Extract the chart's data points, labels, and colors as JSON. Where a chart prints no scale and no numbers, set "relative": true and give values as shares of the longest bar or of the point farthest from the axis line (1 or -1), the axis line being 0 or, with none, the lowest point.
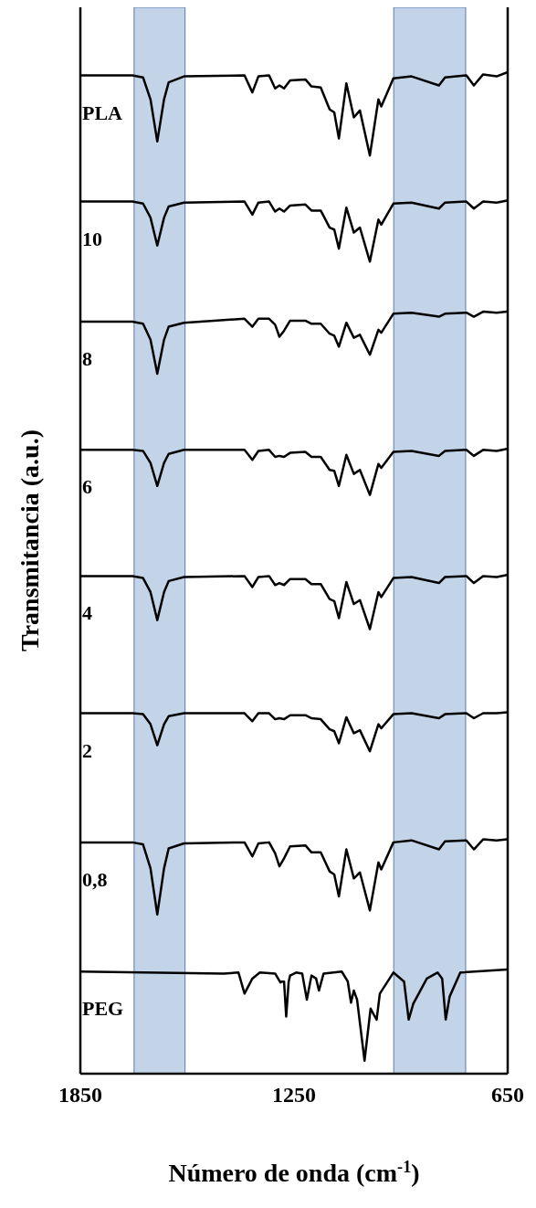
{
  "chart_data": {
    "type": "line",
    "xlabel": "Número de onda (cm$^{-1}$)",
    "ylabel": "Transmitancia (a.u.)",
    "relative": true,
    "xlim": [
      1850,
      650
    ],
    "xticks": [
      1850,
      1250,
      650
    ],
    "marker": "none",
    "line_style": "solid",
    "x": [
      1850,
      1704,
      1674,
      1653,
      1634,
      1615,
      1602,
      1559,
      1389,
      1367,
      1350,
      1320,
      1303,
      1291,
      1278,
      1261,
      1218,
      1201,
      1175,
      1150,
      1137,
      1124,
      1103,
      1082,
      1065,
      1037,
      1013,
      1005,
      971,
      920,
      843,
      826,
      766,
      745,
      719,
      681,
      652
    ],
    "series": [
      {
        "name": "PLA",
        "color": "#000000",
        "values": [
          0.997,
          0.997,
          0.995,
          0.973,
          0.931,
          0.973,
          0.99,
          0.996,
          0.997,
          0.98,
          0.996,
          0.997,
          0.984,
          0.987,
          0.984,
          0.992,
          0.993,
          0.986,
          0.985,
          0.963,
          0.96,
          0.934,
          0.989,
          0.955,
          0.962,
          0.917,
          0.973,
          0.966,
          0.994,
          0.996,
          0.987,
          0.995,
          0.997,
          0.987,
          0.998,
          0.996,
          1.0
        ]
      },
      {
        "name": "10",
        "color": "#000000",
        "values": [
          0.871,
          0.871,
          0.869,
          0.855,
          0.827,
          0.855,
          0.866,
          0.87,
          0.871,
          0.858,
          0.87,
          0.871,
          0.861,
          0.864,
          0.861,
          0.867,
          0.868,
          0.862,
          0.862,
          0.845,
          0.843,
          0.824,
          0.865,
          0.84,
          0.845,
          0.811,
          0.853,
          0.848,
          0.869,
          0.87,
          0.864,
          0.87,
          0.871,
          0.864,
          0.871,
          0.87,
          0.872
        ]
      },
      {
        "name": "8",
        "color": "#000000",
        "values": [
          0.751,
          0.751,
          0.749,
          0.733,
          0.699,
          0.733,
          0.746,
          0.75,
          0.754,
          0.746,
          0.754,
          0.754,
          0.748,
          0.736,
          0.742,
          0.752,
          0.752,
          0.749,
          0.749,
          0.739,
          0.737,
          0.726,
          0.75,
          0.735,
          0.738,
          0.718,
          0.743,
          0.74,
          0.759,
          0.76,
          0.756,
          0.759,
          0.76,
          0.756,
          0.761,
          0.76,
          0.761
        ]
      },
      {
        "name": "6",
        "color": "#000000",
        "values": [
          0.623,
          0.623,
          0.622,
          0.61,
          0.587,
          0.61,
          0.619,
          0.623,
          0.623,
          0.613,
          0.622,
          0.623,
          0.616,
          0.617,
          0.616,
          0.62,
          0.621,
          0.616,
          0.616,
          0.603,
          0.602,
          0.587,
          0.618,
          0.599,
          0.603,
          0.578,
          0.609,
          0.605,
          0.621,
          0.622,
          0.617,
          0.622,
          0.623,
          0.617,
          0.623,
          0.622,
          0.624
        ]
      },
      {
        "name": "4",
        "color": "#000000",
        "values": [
          0.497,
          0.497,
          0.495,
          0.481,
          0.453,
          0.481,
          0.492,
          0.496,
          0.497,
          0.486,
          0.496,
          0.497,
          0.488,
          0.49,
          0.488,
          0.494,
          0.494,
          0.489,
          0.489,
          0.474,
          0.472,
          0.455,
          0.491,
          0.469,
          0.473,
          0.444,
          0.481,
          0.476,
          0.495,
          0.496,
          0.49,
          0.496,
          0.497,
          0.49,
          0.497,
          0.496,
          0.498
        ]
      },
      {
        "name": "2",
        "color": "#000000",
        "values": [
          0.36,
          0.36,
          0.359,
          0.349,
          0.328,
          0.349,
          0.357,
          0.36,
          0.36,
          0.352,
          0.36,
          0.36,
          0.354,
          0.355,
          0.354,
          0.358,
          0.358,
          0.355,
          0.354,
          0.344,
          0.342,
          0.33,
          0.356,
          0.34,
          0.343,
          0.322,
          0.349,
          0.345,
          0.359,
          0.36,
          0.355,
          0.359,
          0.36,
          0.355,
          0.36,
          0.36,
          0.361
        ]
      },
      {
        "name": "0,8",
        "color": "#000000",
        "values": [
          0.231,
          0.231,
          0.229,
          0.205,
          0.159,
          0.205,
          0.225,
          0.23,
          0.231,
          0.217,
          0.23,
          0.231,
          0.22,
          0.207,
          0.215,
          0.227,
          0.228,
          0.221,
          0.221,
          0.202,
          0.199,
          0.177,
          0.224,
          0.195,
          0.201,
          0.163,
          0.211,
          0.204,
          0.231,
          0.233,
          0.224,
          0.232,
          0.233,
          0.224,
          0.234,
          0.233,
          0.234
        ]
      },
      {
        "name": "PEG",
        "color": "#000000",
        "x": [
          1850,
          1448,
          1406,
          1389,
          1367,
          1346,
          1303,
          1288,
          1285,
          1278,
          1272,
          1265,
          1261,
          1244,
          1227,
          1214,
          1201,
          1188,
          1180,
          1167,
          1116,
          1099,
          1090,
          1082,
          1073,
          1052,
          1035,
          1026,
          1018,
          1009,
          971,
          941,
          928,
          915,
          877,
          847,
          834,
          824,
          813,
          783,
          652
        ],
        "values": [
          0.102,
          0.1,
          0.101,
          0.08,
          0.095,
          0.101,
          0.1,
          0.091,
          0.092,
          0.092,
          0.057,
          0.092,
          0.098,
          0.101,
          0.1,
          0.074,
          0.098,
          0.095,
          0.083,
          0.1,
          0.102,
          0.092,
          0.071,
          0.083,
          0.074,
          0.013,
          0.065,
          0.059,
          0.054,
          0.08,
          0.101,
          0.092,
          0.054,
          0.07,
          0.095,
          0.101,
          0.095,
          0.054,
          0.077,
          0.101,
          0.104
        ]
      }
    ],
    "bands": [
      {
        "axis": "x",
        "from": 1699,
        "to": 1556,
        "color": "#b8cce4"
      },
      {
        "axis": "x",
        "from": 970,
        "to": 768,
        "color": "#b8cce4"
      }
    ]
  }
}
